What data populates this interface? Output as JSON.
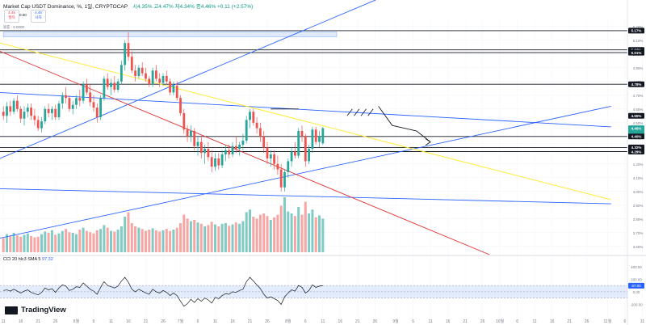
{
  "header": {
    "title": "Market Cap USDT Dominance, %, 1일, CRYPTOCAP",
    "ohlc": "시4.35%  고4.47%  저4.34%  종4.46%  +0.11 (+2.57%)",
    "sell_price": "4.46",
    "sell_label": "팔자",
    "buy_price": "4.46",
    "buy_label": "사자",
    "spread": "0.00",
    "volume_label": "볼륨 · 0.0000"
  },
  "indicator": {
    "label": "CCI 20 hlc3 SMA 5",
    "value": "97.32"
  },
  "logo": {
    "text": "TradingView"
  },
  "colors": {
    "up": "#26a69a",
    "down": "#ef5350",
    "vol_up": "#80cbc4",
    "vol_down": "#f7a6a4",
    "blue": "#2962ff",
    "red": "#e03030",
    "yellow": "#ffeb3b",
    "cci_line": "#131722",
    "cci_band": "#e3ecfd"
  },
  "chart_data": {
    "type": "candlestick",
    "title": "Market Cap USDT Dominance, %, 1D",
    "ylim": [
      3.54,
      5.24
    ],
    "y_ticks": [
      5.2,
      5.1,
      5.0,
      4.9,
      4.8,
      4.7,
      4.6,
      4.5,
      4.4,
      4.3,
      4.2,
      4.1,
      4.0,
      3.9,
      3.8,
      3.7,
      3.6
    ],
    "y_tick_format": "%",
    "price_labels": [
      {
        "text": "5.17%",
        "value": 5.17
      },
      {
        "text": "5.03%",
        "value": 5.03
      },
      {
        "text": "5.01%",
        "value": 5.01
      },
      {
        "text": "4.78%",
        "value": 4.78
      },
      {
        "text": "4.55%",
        "value": 4.55
      },
      {
        "text": "4.46%",
        "value": 4.46,
        "current": true,
        "countdown": "19:16:59"
      },
      {
        "text": "4.40%",
        "value": 4.4
      },
      {
        "text": "4.32%",
        "value": 4.32
      },
      {
        "text": "4.29%",
        "value": 4.29
      }
    ],
    "x_ticks": [
      {
        "label": "11",
        "day": 0
      },
      {
        "label": "16",
        "day": 5
      },
      {
        "label": "21",
        "day": 10
      },
      {
        "label": "26",
        "day": 15
      },
      {
        "label": "6월",
        "day": 21
      },
      {
        "label": "6",
        "day": 26
      },
      {
        "label": "11",
        "day": 31
      },
      {
        "label": "16",
        "day": 36
      },
      {
        "label": "21",
        "day": 41
      },
      {
        "label": "26",
        "day": 46
      },
      {
        "label": "7월",
        "day": 51
      },
      {
        "label": "6",
        "day": 56
      },
      {
        "label": "11",
        "day": 61
      },
      {
        "label": "16",
        "day": 66
      },
      {
        "label": "21",
        "day": 71
      },
      {
        "label": "26",
        "day": 76
      },
      {
        "label": "8월",
        "day": 82
      },
      {
        "label": "6",
        "day": 87
      },
      {
        "label": "11",
        "day": 92
      },
      {
        "label": "16",
        "day": 97
      },
      {
        "label": "21",
        "day": 102
      },
      {
        "label": "26",
        "day": 107
      },
      {
        "label": "9월",
        "day": 113
      },
      {
        "label": "6",
        "day": 118
      },
      {
        "label": "11",
        "day": 123
      },
      {
        "label": "16",
        "day": 128
      },
      {
        "label": "21",
        "day": 133
      },
      {
        "label": "26",
        "day": 138
      },
      {
        "label": "10월",
        "day": 143
      },
      {
        "label": "6",
        "day": 148
      },
      {
        "label": "11",
        "day": 153
      },
      {
        "label": "16",
        "day": 158
      },
      {
        "label": "21",
        "day": 163
      },
      {
        "label": "26",
        "day": 168
      },
      {
        "label": "11월",
        "day": 174
      },
      {
        "label": "6",
        "day": 179
      },
      {
        "label": "11",
        "day": 184
      }
    ],
    "candles": [
      [
        4.58,
        4.62,
        4.52,
        4.55
      ],
      [
        4.55,
        4.65,
        4.5,
        4.62
      ],
      [
        4.62,
        4.66,
        4.55,
        4.58
      ],
      [
        4.58,
        4.68,
        4.56,
        4.66
      ],
      [
        4.66,
        4.7,
        4.58,
        4.6
      ],
      [
        4.6,
        4.62,
        4.5,
        4.53
      ],
      [
        4.53,
        4.62,
        4.48,
        4.58
      ],
      [
        4.58,
        4.64,
        4.54,
        4.61
      ],
      [
        4.61,
        4.64,
        4.52,
        4.55
      ],
      [
        4.55,
        4.6,
        4.48,
        4.52
      ],
      [
        4.52,
        4.55,
        4.44,
        4.46
      ],
      [
        4.46,
        4.54,
        4.43,
        4.51
      ],
      [
        4.51,
        4.62,
        4.49,
        4.6
      ],
      [
        4.6,
        4.64,
        4.54,
        4.57
      ],
      [
        4.57,
        4.62,
        4.52,
        4.6
      ],
      [
        4.6,
        4.63,
        4.52,
        4.54
      ],
      [
        4.54,
        4.66,
        4.52,
        4.64
      ],
      [
        4.64,
        4.72,
        4.6,
        4.7
      ],
      [
        4.7,
        4.76,
        4.64,
        4.68
      ],
      [
        4.68,
        4.7,
        4.58,
        4.6
      ],
      [
        4.6,
        4.66,
        4.56,
        4.63
      ],
      [
        4.63,
        4.7,
        4.6,
        4.68
      ],
      [
        4.68,
        4.74,
        4.62,
        4.66
      ],
      [
        4.66,
        4.8,
        4.64,
        4.78
      ],
      [
        4.78,
        4.82,
        4.7,
        4.72
      ],
      [
        4.72,
        4.78,
        4.62,
        4.65
      ],
      [
        4.65,
        4.7,
        4.58,
        4.61
      ],
      [
        4.61,
        4.64,
        4.5,
        4.54
      ],
      [
        4.54,
        4.7,
        4.52,
        4.68
      ],
      [
        4.68,
        4.84,
        4.66,
        4.82
      ],
      [
        4.82,
        4.86,
        4.74,
        4.76
      ],
      [
        4.76,
        4.82,
        4.7,
        4.79
      ],
      [
        4.79,
        4.84,
        4.72,
        4.74
      ],
      [
        4.74,
        4.82,
        4.72,
        4.8
      ],
      [
        4.8,
        4.95,
        4.78,
        4.92
      ],
      [
        4.92,
        5.1,
        4.88,
        5.08
      ],
      [
        5.08,
        5.16,
        4.95,
        4.98
      ],
      [
        4.98,
        5.02,
        4.86,
        4.88
      ],
      [
        4.88,
        4.92,
        4.8,
        4.84
      ],
      [
        4.84,
        4.92,
        4.82,
        4.9
      ],
      [
        4.9,
        4.94,
        4.84,
        4.86
      ],
      [
        4.86,
        4.9,
        4.8,
        4.82
      ],
      [
        4.82,
        4.84,
        4.76,
        4.78
      ],
      [
        4.78,
        4.9,
        4.76,
        4.88
      ],
      [
        4.88,
        4.92,
        4.8,
        4.82
      ],
      [
        4.82,
        4.86,
        4.76,
        4.79
      ],
      [
        4.79,
        4.86,
        4.77,
        4.84
      ],
      [
        4.84,
        4.88,
        4.78,
        4.8
      ],
      [
        4.8,
        4.82,
        4.7,
        4.72
      ],
      [
        4.72,
        4.8,
        4.7,
        4.77
      ],
      [
        4.77,
        4.8,
        4.66,
        4.68
      ],
      [
        4.68,
        4.7,
        4.55,
        4.57
      ],
      [
        4.57,
        4.6,
        4.42,
        4.45
      ],
      [
        4.45,
        4.48,
        4.36,
        4.4
      ],
      [
        4.4,
        4.48,
        4.36,
        4.44
      ],
      [
        4.44,
        4.46,
        4.3,
        4.33
      ],
      [
        4.33,
        4.4,
        4.26,
        4.36
      ],
      [
        4.36,
        4.4,
        4.24,
        4.28
      ],
      [
        4.28,
        4.34,
        4.2,
        4.31
      ],
      [
        4.31,
        4.36,
        4.22,
        4.25
      ],
      [
        4.25,
        4.3,
        4.14,
        4.18
      ],
      [
        4.18,
        4.28,
        4.15,
        4.24
      ],
      [
        4.24,
        4.28,
        4.16,
        4.19
      ],
      [
        4.19,
        4.3,
        4.17,
        4.27
      ],
      [
        4.27,
        4.34,
        4.22,
        4.3
      ],
      [
        4.3,
        4.34,
        4.24,
        4.27
      ],
      [
        4.27,
        4.36,
        4.25,
        4.33
      ],
      [
        4.33,
        4.4,
        4.28,
        4.31
      ],
      [
        4.31,
        4.36,
        4.26,
        4.34
      ],
      [
        4.34,
        4.42,
        4.3,
        4.37
      ],
      [
        4.37,
        4.55,
        4.35,
        4.52
      ],
      [
        4.52,
        4.6,
        4.46,
        4.58
      ],
      [
        4.58,
        4.6,
        4.48,
        4.5
      ],
      [
        4.5,
        4.54,
        4.42,
        4.46
      ],
      [
        4.46,
        4.5,
        4.36,
        4.4
      ],
      [
        4.4,
        4.44,
        4.28,
        4.32
      ],
      [
        4.32,
        4.36,
        4.2,
        4.24
      ],
      [
        4.24,
        4.3,
        4.18,
        4.27
      ],
      [
        4.27,
        4.3,
        4.16,
        4.2
      ],
      [
        4.2,
        4.26,
        4.12,
        4.16
      ],
      [
        4.16,
        4.2,
        4.0,
        4.03
      ],
      [
        4.03,
        4.16,
        4.0,
        4.14
      ],
      [
        4.14,
        4.24,
        4.1,
        4.22
      ],
      [
        4.22,
        4.32,
        4.18,
        4.29
      ],
      [
        4.29,
        4.36,
        4.24,
        4.26
      ],
      [
        4.26,
        4.46,
        4.24,
        4.44
      ],
      [
        4.44,
        4.48,
        4.36,
        4.4
      ],
      [
        4.4,
        4.42,
        4.18,
        4.22
      ],
      [
        4.22,
        4.34,
        4.2,
        4.31
      ],
      [
        4.31,
        4.47,
        4.28,
        4.45
      ],
      [
        4.45,
        4.47,
        4.34,
        4.36
      ],
      [
        4.36,
        4.44,
        4.32,
        4.4
      ],
      [
        4.35,
        4.47,
        4.34,
        4.46
      ]
    ],
    "volume": [
      0.22,
      0.28,
      0.25,
      0.3,
      0.26,
      0.24,
      0.27,
      0.29,
      0.25,
      0.23,
      0.24,
      0.28,
      0.32,
      0.3,
      0.34,
      0.27,
      0.29,
      0.33,
      0.36,
      0.31,
      0.3,
      0.28,
      0.35,
      0.38,
      0.33,
      0.31,
      0.29,
      0.34,
      0.36,
      0.42,
      0.38,
      0.33,
      0.32,
      0.35,
      0.4,
      0.55,
      0.62,
      0.45,
      0.4,
      0.38,
      0.36,
      0.33,
      0.35,
      0.37,
      0.34,
      0.32,
      0.34,
      0.36,
      0.33,
      0.35,
      0.38,
      0.45,
      0.58,
      0.52,
      0.48,
      0.5,
      0.46,
      0.44,
      0.4,
      0.42,
      0.47,
      0.43,
      0.4,
      0.44,
      0.45,
      0.41,
      0.43,
      0.46,
      0.44,
      0.48,
      0.62,
      0.66,
      0.55,
      0.52,
      0.58,
      0.6,
      0.56,
      0.5,
      0.54,
      0.58,
      0.72,
      0.85,
      0.63,
      0.6,
      0.56,
      0.7,
      0.58,
      0.78,
      0.6,
      0.66,
      0.54,
      0.57,
      0.52
    ],
    "cci": [
      20,
      30,
      10,
      40,
      10,
      -20,
      10,
      30,
      -10,
      -30,
      -50,
      -10,
      60,
      30,
      50,
      -10,
      60,
      110,
      90,
      20,
      40,
      80,
      70,
      140,
      90,
      40,
      10,
      -40,
      70,
      160,
      100,
      80,
      60,
      90,
      170,
      230,
      150,
      40,
      0,
      40,
      10,
      -20,
      -40,
      40,
      0,
      -20,
      20,
      -10,
      -60,
      -20,
      -60,
      -150,
      -230,
      -190,
      -120,
      -170,
      -110,
      -150,
      -100,
      -130,
      -180,
      -90,
      -110,
      -60,
      -30,
      -40,
      0,
      -10,
      20,
      40,
      160,
      230,
      170,
      110,
      50,
      -40,
      -100,
      -80,
      -110,
      -140,
      -200,
      -80,
      -20,
      30,
      10,
      100,
      70,
      -20,
      20,
      110,
      70,
      90,
      97
    ],
    "cci_yticks": [
      400,
      200,
      0,
      -200
    ],
    "cci_band": [
      -100,
      100
    ],
    "annotation_boxes": [
      {
        "from_day": 0,
        "to_day": 96,
        "top": 5.16,
        "bottom": 5.125
      }
    ],
    "horizontal_levels": [
      5.17,
      5.03,
      5.01,
      4.78,
      4.4,
      4.32,
      4.29
    ],
    "trendlines": [
      {
        "color": "blue",
        "points": [
          [
            -1,
            4.24
          ],
          [
            136,
            5.7
          ]
        ]
      },
      {
        "color": "blue",
        "points": [
          [
            -1,
            3.66
          ],
          [
            175,
            4.62
          ]
        ]
      },
      {
        "color": "blue",
        "points": [
          [
            -1,
            4.72
          ],
          [
            175,
            4.47
          ]
        ]
      },
      {
        "color": "blue",
        "points": [
          [
            -1,
            4.02
          ],
          [
            175,
            3.91
          ]
        ]
      },
      {
        "color": "red",
        "points": [
          [
            -1,
            5.02
          ],
          [
            140,
            3.54
          ]
        ]
      },
      {
        "color": "yellow",
        "points": [
          [
            -1,
            5.08
          ],
          [
            175,
            3.94
          ]
        ]
      }
    ],
    "forecast_path": [
      [
        108,
        4.62
      ],
      [
        112,
        4.48
      ],
      [
        119,
        4.44
      ],
      [
        123,
        4.36
      ]
    ]
  }
}
